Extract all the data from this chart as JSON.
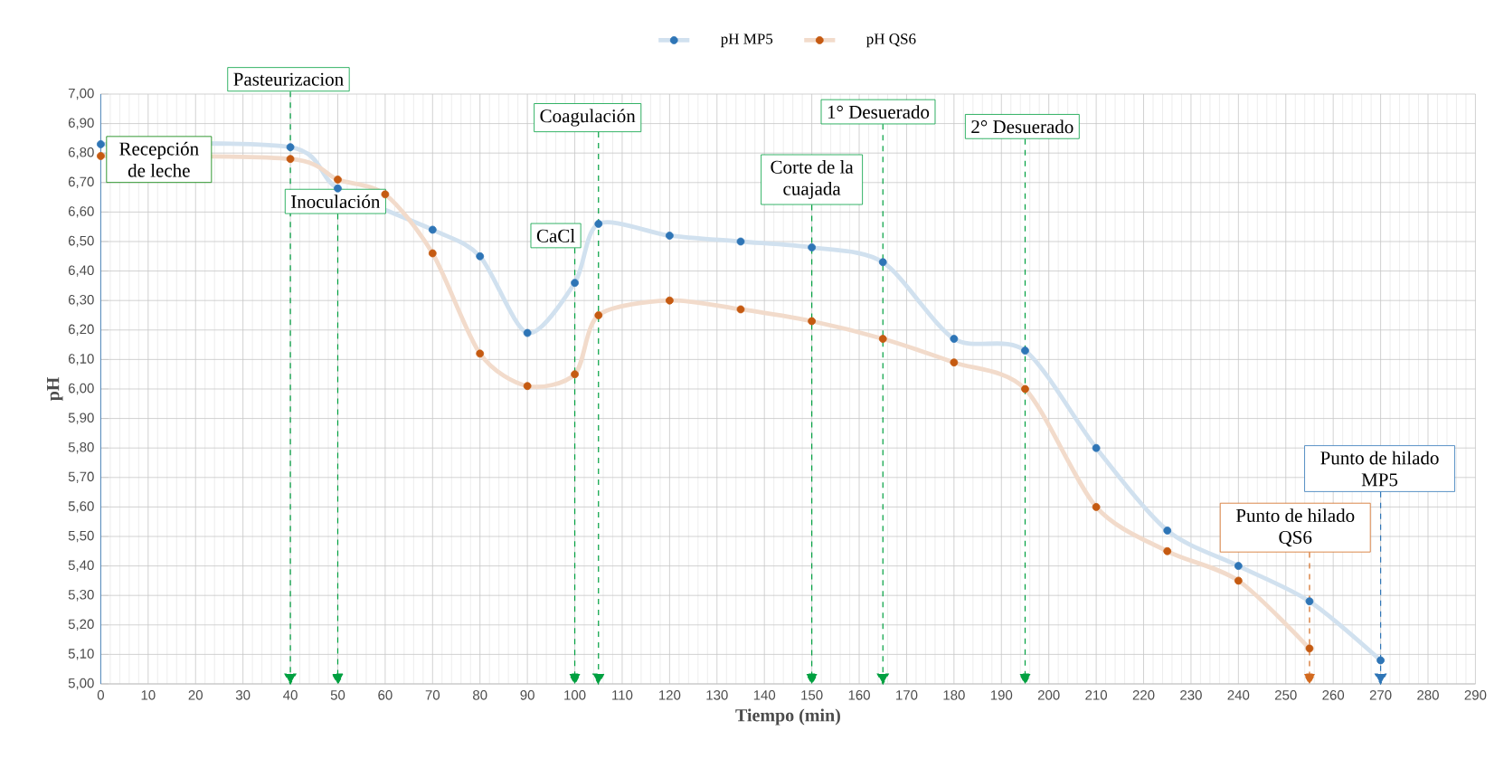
{
  "chart_data": {
    "type": "line",
    "xlabel": "Tiempo (min)",
    "ylabel": "pH",
    "series": [
      {
        "name": "pH MP5",
        "color": "#2e75b6",
        "x": [
          0,
          40,
          50,
          70,
          80,
          90,
          100,
          105,
          120,
          135,
          150,
          165,
          180,
          195,
          210,
          225,
          240,
          255,
          270
        ],
        "values": [
          6.83,
          6.82,
          6.68,
          6.54,
          6.45,
          6.19,
          6.36,
          6.56,
          6.52,
          6.5,
          6.48,
          6.43,
          6.17,
          6.13,
          5.8,
          5.52,
          5.4,
          5.28,
          5.08
        ]
      },
      {
        "name": "pH QS6",
        "color": "#c55a11",
        "x": [
          0,
          40,
          50,
          60,
          70,
          80,
          90,
          100,
          105,
          120,
          135,
          150,
          165,
          180,
          195,
          210,
          225,
          240,
          255
        ],
        "values": [
          6.79,
          6.78,
          6.71,
          6.66,
          6.46,
          6.12,
          6.01,
          6.05,
          6.25,
          6.3,
          6.27,
          6.23,
          6.17,
          6.09,
          6.0,
          5.6,
          5.45,
          5.35,
          5.12
        ]
      }
    ],
    "xlim": [
      0,
      290
    ],
    "ylim": [
      5,
      7
    ],
    "xticks": [
      0,
      10,
      20,
      30,
      40,
      50,
      60,
      70,
      80,
      90,
      100,
      110,
      120,
      130,
      140,
      150,
      160,
      170,
      180,
      190,
      200,
      210,
      220,
      230,
      240,
      250,
      260,
      270,
      280,
      290
    ],
    "yticks": [
      {
        "value": 5,
        "label": "5,00"
      },
      {
        "value": 5.1,
        "label": "5,10"
      },
      {
        "value": 5.2,
        "label": "5,20"
      },
      {
        "value": 5.3,
        "label": "5,30"
      },
      {
        "value": 5.4,
        "label": "5,40"
      },
      {
        "value": 5.5,
        "label": "5,50"
      },
      {
        "value": 5.6,
        "label": "5,60"
      },
      {
        "value": 5.7,
        "label": "5,70"
      },
      {
        "value": 5.8,
        "label": "5,80"
      },
      {
        "value": 5.9,
        "label": "5,90"
      },
      {
        "value": 6,
        "label": "6,00"
      },
      {
        "value": 6.1,
        "label": "6,10"
      },
      {
        "value": 6.2,
        "label": "6,20"
      },
      {
        "value": 6.3,
        "label": "6,30"
      },
      {
        "value": 6.4,
        "label": "6,40"
      },
      {
        "value": 6.5,
        "label": "6,50"
      },
      {
        "value": 6.6,
        "label": "6,60"
      },
      {
        "value": 6.7,
        "label": "6,70"
      },
      {
        "value": 6.8,
        "label": "6,80"
      },
      {
        "value": 6.9,
        "label": "6,90"
      },
      {
        "value": 7,
        "label": "7,00"
      }
    ],
    "grid": true,
    "legend": "top",
    "marker": "circle",
    "line_style": "solid",
    "ref_lines": [
      {
        "axis": "x",
        "value": 40,
        "label": "Pasteurizacion",
        "color": "#00a040",
        "line_style": "dashed"
      },
      {
        "axis": "x",
        "value": 50,
        "label": "Inoculación",
        "color": "#00a040",
        "line_style": "dashed"
      },
      {
        "axis": "x",
        "value": 100,
        "label": "CaCl",
        "color": "#00a040",
        "line_style": "dashed"
      },
      {
        "axis": "x",
        "value": 105,
        "label": "Coagulación",
        "color": "#00a040",
        "line_style": "dashed"
      },
      {
        "axis": "x",
        "value": 150,
        "label": "Corte de la cuajada",
        "color": "#00a040",
        "line_style": "dashed"
      },
      {
        "axis": "x",
        "value": 165,
        "label": "1° Desuerado",
        "color": "#00a040",
        "line_style": "dashed"
      },
      {
        "axis": "x",
        "value": 195,
        "label": "2° Desuerado",
        "color": "#00a040",
        "line_style": "dashed"
      },
      {
        "axis": "x",
        "value": 255,
        "label": "Punto de hilado QS6",
        "color": "#d2691e",
        "line_style": "dashed"
      },
      {
        "axis": "x",
        "value": 270,
        "label": "Punto de hilado MP5",
        "color": "#2e75b6",
        "line_style": "dashed"
      }
    ],
    "annotations": [
      {
        "text": "Recepción de leche",
        "x": 0,
        "y": 6.79
      }
    ]
  }
}
